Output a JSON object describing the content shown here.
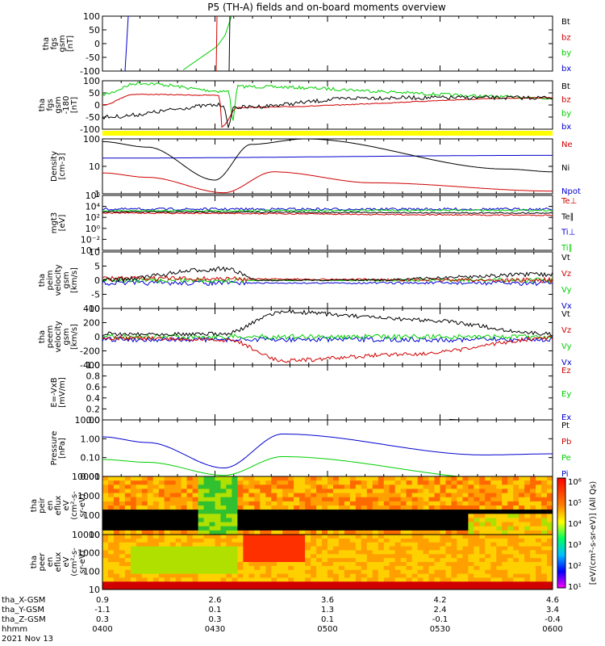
{
  "title": "P5 (TH-A) fields and on-board moments overview",
  "colors": {
    "black": "#000000",
    "red": "#d00000",
    "green": "#00d000",
    "blue": "#0000d0",
    "yellow": "#ffff00"
  },
  "chart_data": [
    {
      "type": "line",
      "name": "fgs-gsm",
      "ylabel": [
        "tha",
        "fgs",
        "gsm",
        "[nT]"
      ],
      "yticks": [
        100,
        50,
        0,
        -50,
        -100
      ],
      "ylim": [
        -100,
        100
      ],
      "legend": [
        {
          "label": "Bt",
          "color": "black"
        },
        {
          "label": "bz",
          "color": "red"
        },
        {
          "label": "by",
          "color": "green"
        },
        {
          "label": "bx",
          "color": "blue"
        }
      ]
    },
    {
      "type": "line",
      "name": "fgs-gsm-180",
      "ylabel": [
        "tha",
        "fgs",
        "gsm",
        "-180",
        "[nT]"
      ],
      "yticks": [
        100,
        50,
        0,
        -50,
        -100
      ],
      "ylim": [
        -120,
        120
      ],
      "legend": [
        {
          "label": "Bt",
          "color": "black"
        },
        {
          "label": "bz",
          "color": "red"
        },
        {
          "label": "by",
          "color": "green"
        },
        {
          "label": "bx",
          "color": "blue"
        }
      ]
    },
    {
      "type": "line",
      "name": "density",
      "ylabel": [
        "Density",
        "[cm-3]"
      ],
      "yticks": [
        "100",
        "10",
        "1"
      ],
      "ylim": [
        0.5,
        200
      ],
      "log": true,
      "legend": [
        {
          "label": "Ne",
          "color": "red"
        },
        {
          "label": "Ni",
          "color": "black"
        },
        {
          "label": "Npot",
          "color": "blue"
        }
      ]
    },
    {
      "type": "line",
      "name": "temperature",
      "ylabel": [
        "mgt3",
        "[eV]"
      ],
      "yticks": [
        "10⁶",
        "10⁴",
        "10²",
        "10⁰",
        "10⁻²",
        "10⁻⁴"
      ],
      "log": true,
      "legend": [
        {
          "label": "Te⊥",
          "color": "red"
        },
        {
          "label": "Te∥",
          "color": "black"
        },
        {
          "label": "Ti⊥",
          "color": "blue"
        },
        {
          "label": "Ti∥",
          "color": "green"
        }
      ]
    },
    {
      "type": "line",
      "name": "peim-velocity",
      "ylabel": [
        "tha",
        "peim",
        "velocity",
        "gsm",
        "[km/s]"
      ],
      "yticks": [
        10,
        5,
        0,
        -5,
        -10
      ],
      "ylim": [
        -10,
        10
      ],
      "legend": [
        {
          "label": "Vt",
          "color": "black"
        },
        {
          "label": "Vz",
          "color": "red"
        },
        {
          "label": "Vy",
          "color": "green"
        },
        {
          "label": "Vx",
          "color": "blue"
        }
      ]
    },
    {
      "type": "line",
      "name": "peem-velocity",
      "ylabel": [
        "tha",
        "peem",
        "velocity",
        "gsm",
        "[km/s]"
      ],
      "yticks": [
        400,
        200,
        0,
        -200,
        -400
      ],
      "ylim": [
        -400,
        400
      ],
      "legend": [
        {
          "label": "Vt",
          "color": "black"
        },
        {
          "label": "Vz",
          "color": "red"
        },
        {
          "label": "Vy",
          "color": "green"
        },
        {
          "label": "Vx",
          "color": "blue"
        }
      ]
    },
    {
      "type": "line",
      "name": "efield",
      "ylabel": [
        "E=-VxB",
        "[mV/m]"
      ],
      "yticks": [
        "1.0",
        "0.8",
        "0.6",
        "0.4",
        "0.2",
        "0.0"
      ],
      "ylim": [
        0,
        1
      ],
      "legend": [
        {
          "label": "Ez",
          "color": "red"
        },
        {
          "label": "Ey",
          "color": "green"
        },
        {
          "label": "Ex",
          "color": "blue"
        }
      ]
    },
    {
      "type": "line",
      "name": "pressure",
      "ylabel": [
        "Pressure",
        "[nPa]"
      ],
      "yticks": [
        "10.00",
        "1.00",
        "0.10",
        "0.01"
      ],
      "log": true,
      "legend": [
        {
          "label": "Pt",
          "color": "black"
        },
        {
          "label": "Pb",
          "color": "red"
        },
        {
          "label": "Pe",
          "color": "green"
        },
        {
          "label": "Pi",
          "color": "blue"
        }
      ]
    },
    {
      "type": "heatmap",
      "name": "peir-eflux",
      "ylabel": [
        "tha",
        "peir",
        "en",
        "eflux",
        "eV",
        "(cm²-s-",
        "sr-eV)"
      ],
      "yticks": [
        "10000",
        "1000",
        "100",
        "10"
      ],
      "log": true
    },
    {
      "type": "heatmap",
      "name": "peer-eflux",
      "ylabel": [
        "tha",
        "peer",
        "en",
        "eflux",
        "eV",
        "(cm²-s-",
        "sr-eV)"
      ],
      "yticks": [
        "10000",
        "1000",
        "100",
        "10"
      ],
      "log": true
    }
  ],
  "colorbar": {
    "ticks": [
      "10⁶",
      "10⁵",
      "10⁴",
      "10³",
      "10²",
      "10¹"
    ],
    "label": "[eV/(cm²-s-sr-eV)] (All Qs)"
  },
  "x_axis": {
    "rows": [
      {
        "label": "tha_X-GSM",
        "values": [
          "0.9",
          "2.6",
          "3.6",
          "4.2",
          "4.6"
        ]
      },
      {
        "label": "tha_Y-GSM",
        "values": [
          "-1.1",
          "0.1",
          "1.3",
          "2.4",
          "3.4"
        ]
      },
      {
        "label": "tha_Z-GSM",
        "values": [
          "0.3",
          "0.3",
          "0.1",
          "-0.1",
          "-0.4"
        ]
      },
      {
        "label": "hhmm",
        "values": [
          "0400",
          "0430",
          "0500",
          "0530",
          "0600"
        ]
      }
    ],
    "date": "2021 Nov 13"
  }
}
